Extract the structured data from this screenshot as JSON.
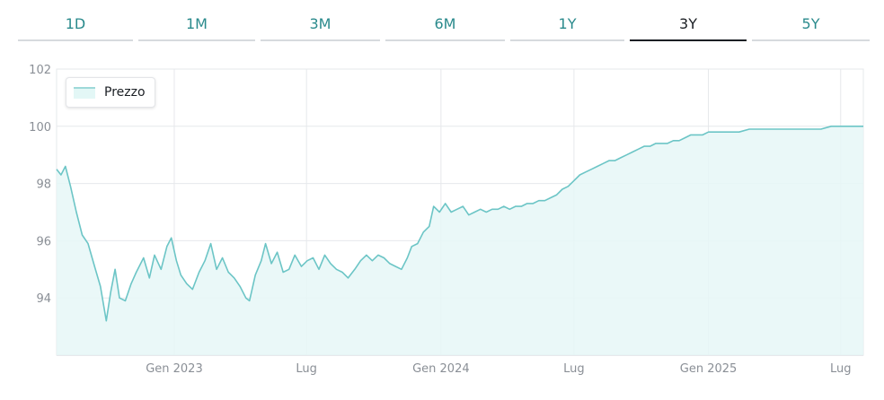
{
  "tabs": [
    {
      "label": "1D",
      "active": false
    },
    {
      "label": "1M",
      "active": false
    },
    {
      "label": "3M",
      "active": false
    },
    {
      "label": "6M",
      "active": false
    },
    {
      "label": "1Y",
      "active": false
    },
    {
      "label": "3Y",
      "active": true
    },
    {
      "label": "5Y",
      "active": false
    }
  ],
  "colors": {
    "accent": "#2a8a8c",
    "line": "#6cc5c6",
    "fill": "#e6f7f7"
  },
  "chart_data": {
    "type": "area",
    "legend": [
      "Prezzo"
    ],
    "legend_position": "top-left",
    "grid": true,
    "ylim": [
      92,
      102
    ],
    "yticks": [
      94,
      96,
      98,
      100,
      102
    ],
    "xlim": [
      "2022-07-24",
      "2025-08-01"
    ],
    "xticks": [
      {
        "date": "2023-01-01",
        "label": "Gen 2023"
      },
      {
        "date": "2023-07-01",
        "label": "Lug"
      },
      {
        "date": "2024-01-01",
        "label": "Gen 2024"
      },
      {
        "date": "2024-07-01",
        "label": "Lug"
      },
      {
        "date": "2025-01-01",
        "label": "Gen 2025"
      },
      {
        "date": "2025-07-01",
        "label": "Lug"
      }
    ],
    "series": [
      {
        "name": "Prezzo",
        "points": [
          [
            "2022-07-24",
            98.5
          ],
          [
            "2022-07-30",
            98.3
          ],
          [
            "2022-08-05",
            98.6
          ],
          [
            "2022-08-12",
            97.9
          ],
          [
            "2022-08-20",
            97.0
          ],
          [
            "2022-08-28",
            96.2
          ],
          [
            "2022-09-05",
            95.9
          ],
          [
            "2022-09-14",
            95.1
          ],
          [
            "2022-09-22",
            94.4
          ],
          [
            "2022-09-30",
            93.2
          ],
          [
            "2022-10-06",
            94.2
          ],
          [
            "2022-10-12",
            95.0
          ],
          [
            "2022-10-18",
            94.0
          ],
          [
            "2022-10-26",
            93.9
          ],
          [
            "2022-11-03",
            94.5
          ],
          [
            "2022-11-10",
            94.9
          ],
          [
            "2022-11-20",
            95.4
          ],
          [
            "2022-11-28",
            94.7
          ],
          [
            "2022-12-05",
            95.5
          ],
          [
            "2022-12-14",
            95.0
          ],
          [
            "2022-12-22",
            95.8
          ],
          [
            "2022-12-28",
            96.1
          ],
          [
            "2023-01-04",
            95.3
          ],
          [
            "2023-01-10",
            94.8
          ],
          [
            "2023-01-18",
            94.5
          ],
          [
            "2023-01-26",
            94.3
          ],
          [
            "2023-02-04",
            94.9
          ],
          [
            "2023-02-12",
            95.3
          ],
          [
            "2023-02-20",
            95.9
          ],
          [
            "2023-02-28",
            95.0
          ],
          [
            "2023-03-08",
            95.4
          ],
          [
            "2023-03-16",
            94.9
          ],
          [
            "2023-03-24",
            94.7
          ],
          [
            "2023-04-01",
            94.4
          ],
          [
            "2023-04-09",
            94.0
          ],
          [
            "2023-04-14",
            93.9
          ],
          [
            "2023-04-22",
            94.8
          ],
          [
            "2023-04-30",
            95.3
          ],
          [
            "2023-05-06",
            95.9
          ],
          [
            "2023-05-14",
            95.2
          ],
          [
            "2023-05-22",
            95.6
          ],
          [
            "2023-05-30",
            94.9
          ],
          [
            "2023-06-07",
            95.0
          ],
          [
            "2023-06-15",
            95.5
          ],
          [
            "2023-06-24",
            95.1
          ],
          [
            "2023-07-02",
            95.3
          ],
          [
            "2023-07-10",
            95.4
          ],
          [
            "2023-07-18",
            95.0
          ],
          [
            "2023-07-26",
            95.5
          ],
          [
            "2023-08-03",
            95.2
          ],
          [
            "2023-08-11",
            95.0
          ],
          [
            "2023-08-19",
            94.9
          ],
          [
            "2023-08-27",
            94.7
          ],
          [
            "2023-09-05",
            95.0
          ],
          [
            "2023-09-13",
            95.3
          ],
          [
            "2023-09-21",
            95.5
          ],
          [
            "2023-09-29",
            95.3
          ],
          [
            "2023-10-07",
            95.5
          ],
          [
            "2023-10-15",
            95.4
          ],
          [
            "2023-10-23",
            95.2
          ],
          [
            "2023-10-31",
            95.1
          ],
          [
            "2023-11-08",
            95.0
          ],
          [
            "2023-11-16",
            95.4
          ],
          [
            "2023-11-22",
            95.8
          ],
          [
            "2023-11-30",
            95.9
          ],
          [
            "2023-12-08",
            96.3
          ],
          [
            "2023-12-16",
            96.5
          ],
          [
            "2023-12-22",
            97.2
          ],
          [
            "2023-12-30",
            97.0
          ],
          [
            "2024-01-07",
            97.3
          ],
          [
            "2024-01-15",
            97.0
          ],
          [
            "2024-01-23",
            97.1
          ],
          [
            "2024-01-31",
            97.2
          ],
          [
            "2024-02-08",
            96.9
          ],
          [
            "2024-02-16",
            97.0
          ],
          [
            "2024-02-24",
            97.1
          ],
          [
            "2024-03-03",
            97.0
          ],
          [
            "2024-03-11",
            97.1
          ],
          [
            "2024-03-19",
            97.1
          ],
          [
            "2024-03-27",
            97.2
          ],
          [
            "2024-04-04",
            97.1
          ],
          [
            "2024-04-12",
            97.2
          ],
          [
            "2024-04-20",
            97.2
          ],
          [
            "2024-04-28",
            97.3
          ],
          [
            "2024-05-06",
            97.3
          ],
          [
            "2024-05-14",
            97.4
          ],
          [
            "2024-05-22",
            97.4
          ],
          [
            "2024-05-30",
            97.5
          ],
          [
            "2024-06-07",
            97.6
          ],
          [
            "2024-06-15",
            97.8
          ],
          [
            "2024-06-23",
            97.9
          ],
          [
            "2024-07-01",
            98.1
          ],
          [
            "2024-07-09",
            98.3
          ],
          [
            "2024-07-17",
            98.4
          ],
          [
            "2024-07-25",
            98.5
          ],
          [
            "2024-08-02",
            98.6
          ],
          [
            "2024-08-10",
            98.7
          ],
          [
            "2024-08-18",
            98.8
          ],
          [
            "2024-08-26",
            98.8
          ],
          [
            "2024-09-03",
            98.9
          ],
          [
            "2024-09-11",
            99.0
          ],
          [
            "2024-09-19",
            99.1
          ],
          [
            "2024-09-27",
            99.2
          ],
          [
            "2024-10-05",
            99.3
          ],
          [
            "2024-10-13",
            99.3
          ],
          [
            "2024-10-21",
            99.4
          ],
          [
            "2024-10-29",
            99.4
          ],
          [
            "2024-11-06",
            99.4
          ],
          [
            "2024-11-14",
            99.5
          ],
          [
            "2024-11-22",
            99.5
          ],
          [
            "2024-11-30",
            99.6
          ],
          [
            "2024-12-08",
            99.7
          ],
          [
            "2024-12-16",
            99.7
          ],
          [
            "2024-12-24",
            99.7
          ],
          [
            "2025-01-01",
            99.8
          ],
          [
            "2025-01-15",
            99.8
          ],
          [
            "2025-01-29",
            99.8
          ],
          [
            "2025-02-12",
            99.8
          ],
          [
            "2025-02-26",
            99.9
          ],
          [
            "2025-03-12",
            99.9
          ],
          [
            "2025-03-26",
            99.9
          ],
          [
            "2025-04-09",
            99.9
          ],
          [
            "2025-04-23",
            99.9
          ],
          [
            "2025-05-07",
            99.9
          ],
          [
            "2025-05-21",
            99.9
          ],
          [
            "2025-06-04",
            99.9
          ],
          [
            "2025-06-18",
            100.0
          ],
          [
            "2025-07-02",
            100.0
          ],
          [
            "2025-07-16",
            100.0
          ],
          [
            "2025-08-01",
            100.0
          ]
        ]
      }
    ]
  }
}
